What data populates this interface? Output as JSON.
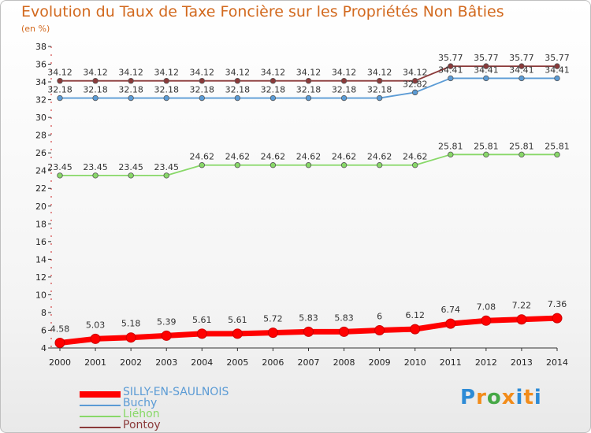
{
  "title": "Evolution du Taux de Taxe Foncière sur les Propriétés Non Bâties",
  "unit_label": "(en %)",
  "logo": {
    "text": "Proxiti",
    "colors": [
      "#2d8bd6",
      "#f28c1a",
      "#46a846",
      "#f28c1a",
      "#2d8bd6",
      "#f28c1a",
      "#2d8bd6"
    ]
  },
  "chart_data": {
    "type": "line",
    "title": "Evolution du Taux de Taxe Foncière sur les Propriétés Non Bâties",
    "ylabel": "(en %)",
    "xlabel": "",
    "x": [
      "2000",
      "2001",
      "2002",
      "2003",
      "2004",
      "2005",
      "2006",
      "2007",
      "2008",
      "2009",
      "2010",
      "2011",
      "2012",
      "2013",
      "2014"
    ],
    "ylim": [
      4,
      38
    ],
    "yticks": [
      4,
      6,
      8,
      10,
      12,
      14,
      16,
      18,
      20,
      22,
      24,
      26,
      28,
      30,
      32,
      34,
      36,
      38
    ],
    "grid": false,
    "legend_position": "bottom-left",
    "series": [
      {
        "name": "SILLY-EN-SAULNOIS",
        "color": "#ff0000",
        "values": [
          4.58,
          5.03,
          5.18,
          5.39,
          5.61,
          5.61,
          5.72,
          5.83,
          5.83,
          6,
          6.12,
          6.74,
          7.08,
          7.22,
          7.36
        ],
        "labels": [
          "4.58",
          "5.03",
          "5.18",
          "5.39",
          "5.61",
          "5.61",
          "5.72",
          "5.83",
          "5.83",
          "6",
          "6.12",
          "6.74",
          "7.08",
          "7.22",
          "7.36"
        ]
      },
      {
        "name": "Buchy",
        "color": "#5b9bd5",
        "values": [
          32.18,
          32.18,
          32.18,
          32.18,
          32.18,
          32.18,
          32.18,
          32.18,
          32.18,
          32.18,
          32.82,
          34.41,
          34.41,
          34.41,
          34.41
        ],
        "labels": [
          "32.18",
          "32.18",
          "32.18",
          "32.18",
          "32.18",
          "32.18",
          "32.18",
          "32.18",
          "32.18",
          "32.18",
          "32.82",
          "34.41",
          "34.41",
          "34.41",
          "34.41"
        ]
      },
      {
        "name": "Liéhon",
        "color": "#88d868",
        "values": [
          23.45,
          23.45,
          23.45,
          23.45,
          24.62,
          24.62,
          24.62,
          24.62,
          24.62,
          24.62,
          24.62,
          25.81,
          25.81,
          25.81,
          25.81
        ],
        "labels": [
          "23.45",
          "23.45",
          "23.45",
          "23.45",
          "24.62",
          "24.62",
          "24.62",
          "24.62",
          "24.62",
          "24.62",
          "24.62",
          "25.81",
          "25.81",
          "25.81",
          "25.81"
        ]
      },
      {
        "name": "Pontoy",
        "color": "#8b3a3a",
        "values": [
          34.12,
          34.12,
          34.12,
          34.12,
          34.12,
          34.12,
          34.12,
          34.12,
          34.12,
          34.12,
          34.12,
          35.77,
          35.77,
          35.77,
          35.77
        ],
        "labels": [
          "34.12",
          "34.12",
          "34.12",
          "34.12",
          "34.12",
          "34.12",
          "34.12",
          "34.12",
          "34.12",
          "34.12",
          "34.12",
          "35.77",
          "35.77",
          "35.77",
          "35.77"
        ]
      }
    ]
  }
}
